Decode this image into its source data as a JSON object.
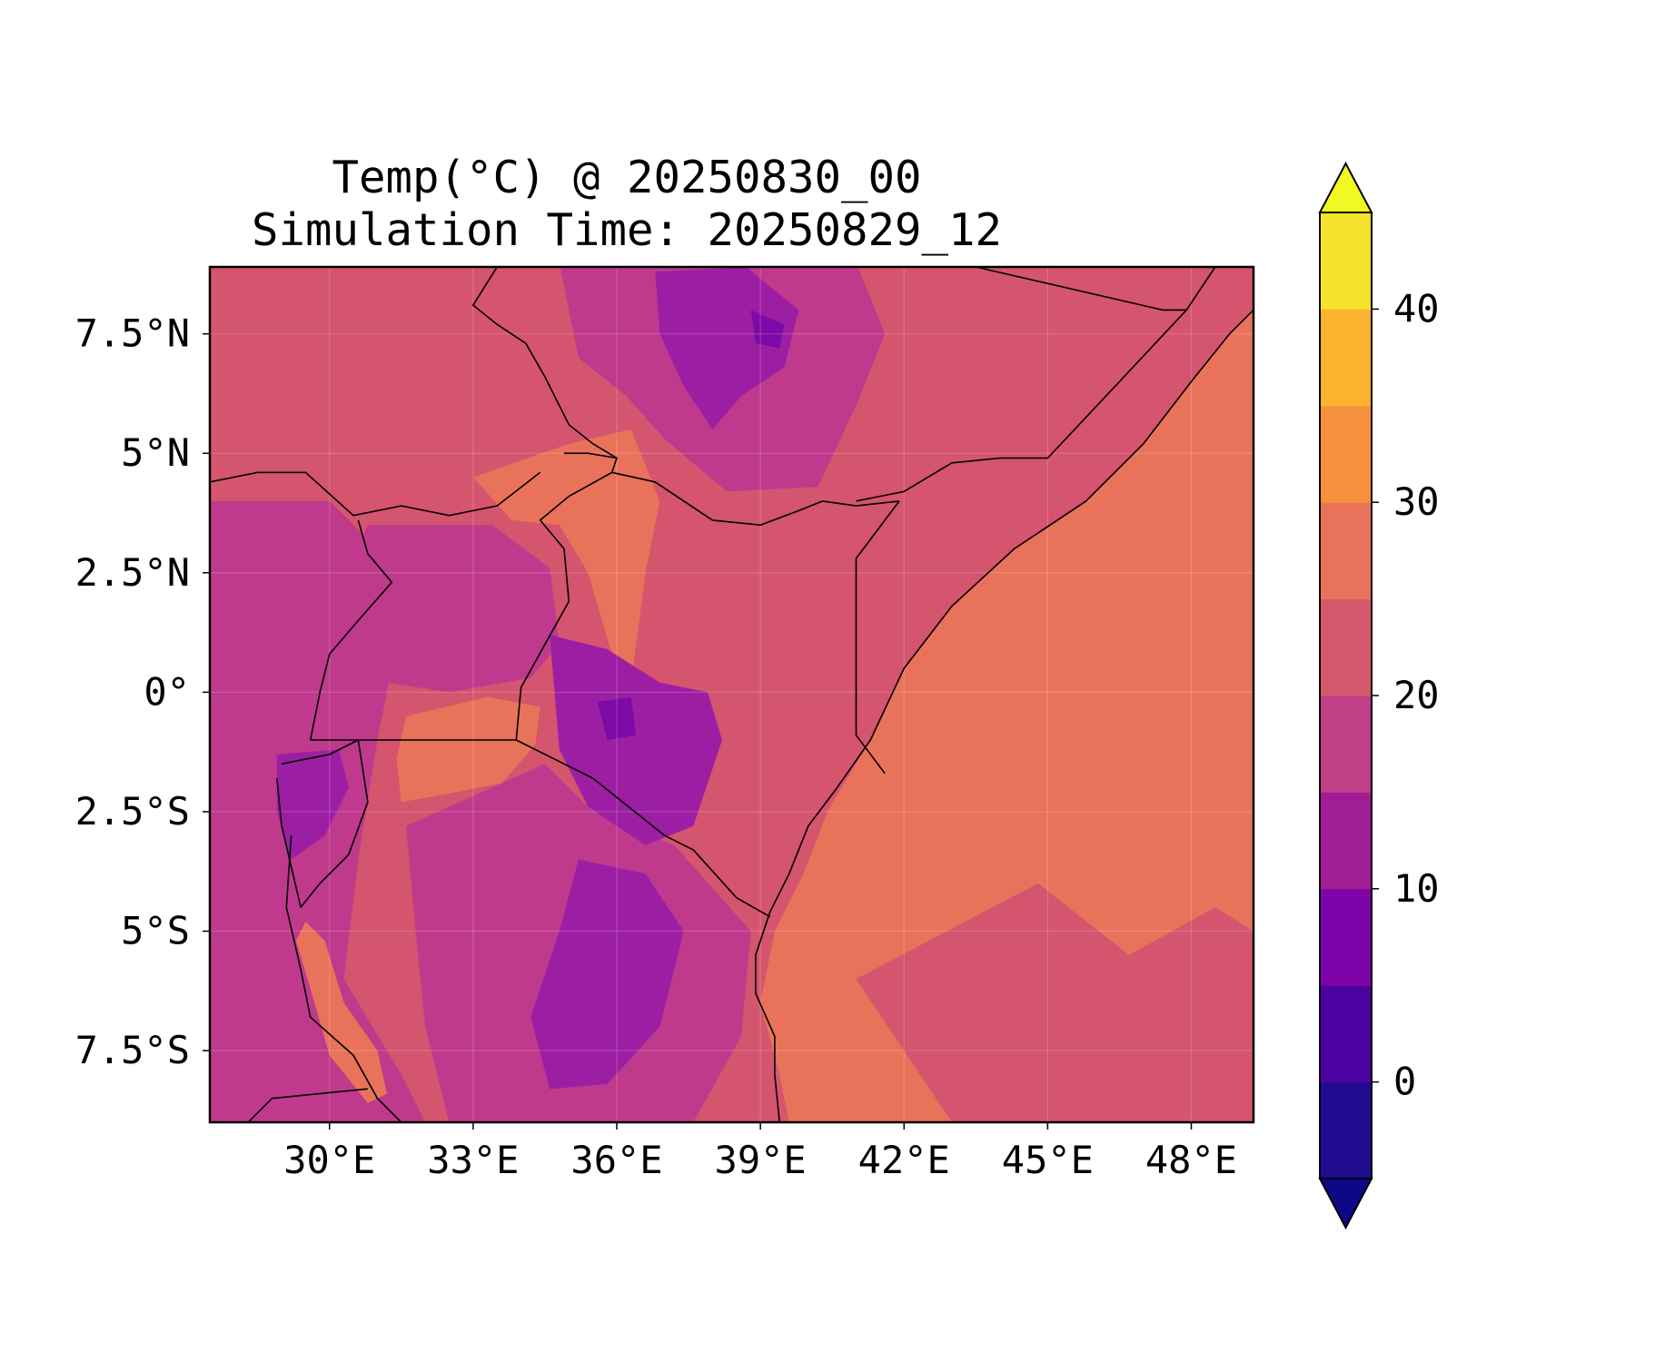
{
  "figure": {
    "title_line1": "Temp(°C) @ 20250830_00",
    "title_line2": "Simulation Time: 20250829_12"
  },
  "map": {
    "extent_lon": [
      27.5,
      49.3
    ],
    "extent_lat": [
      -9.0,
      8.9
    ],
    "x_ticks": [
      {
        "lon": 30,
        "label": "30°E"
      },
      {
        "lon": 33,
        "label": "33°E"
      },
      {
        "lon": 36,
        "label": "36°E"
      },
      {
        "lon": 39,
        "label": "39°E"
      },
      {
        "lon": 42,
        "label": "42°E"
      },
      {
        "lon": 45,
        "label": "45°E"
      },
      {
        "lon": 48,
        "label": "48°E"
      }
    ],
    "y_ticks": [
      {
        "lat": 7.5,
        "label": "7.5°N"
      },
      {
        "lat": 5,
        "label": "5°N"
      },
      {
        "lat": 2.5,
        "label": "2.5°N"
      },
      {
        "lat": 0,
        "label": "0°"
      },
      {
        "lat": -2.5,
        "label": "2.5°S"
      },
      {
        "lat": -5,
        "label": "5°S"
      },
      {
        "lat": -7.5,
        "label": "7.5°S"
      }
    ],
    "gridlines": true,
    "colormap": "plasma",
    "background_color": "#d5546e",
    "fields": [
      {
        "name": "indian-ocean-warm",
        "color": "#e8735a",
        "points": [
          [
            49.3,
            8.0
          ],
          [
            48.8,
            7.5
          ],
          [
            48.0,
            6.5
          ],
          [
            47.0,
            5.2
          ],
          [
            45.8,
            4.0
          ],
          [
            44.3,
            3.0
          ],
          [
            43.0,
            1.8
          ],
          [
            42.0,
            0.5
          ],
          [
            41.3,
            -1.0
          ],
          [
            40.4,
            -2.5
          ],
          [
            39.9,
            -3.8
          ],
          [
            39.3,
            -5.0
          ],
          [
            39.0,
            -6.5
          ],
          [
            39.4,
            -8.0
          ],
          [
            39.6,
            -9.0
          ],
          [
            43.0,
            -9.0
          ],
          [
            41.0,
            -6.0
          ],
          [
            44.8,
            -4.0
          ],
          [
            46.7,
            -5.5
          ],
          [
            48.5,
            -4.5
          ],
          [
            49.3,
            -5.0
          ]
        ]
      },
      {
        "name": "turkana-warm-belt",
        "color": "#e8735a",
        "points": [
          [
            33.0,
            4.5
          ],
          [
            35.0,
            5.2
          ],
          [
            36.3,
            5.5
          ],
          [
            36.9,
            4.0
          ],
          [
            36.6,
            2.5
          ],
          [
            36.3,
            0.2
          ],
          [
            35.9,
            0.8
          ],
          [
            35.4,
            2.5
          ],
          [
            34.8,
            3.5
          ],
          [
            33.8,
            3.6
          ]
        ]
      },
      {
        "name": "lake-victoria-warm",
        "color": "#e8735a",
        "points": [
          [
            31.6,
            -0.5
          ],
          [
            33.3,
            -0.1
          ],
          [
            34.4,
            -0.3
          ],
          [
            34.3,
            -1.1
          ],
          [
            33.6,
            -1.9
          ],
          [
            32.6,
            -2.1
          ],
          [
            31.5,
            -2.3
          ],
          [
            31.4,
            -1.4
          ]
        ]
      },
      {
        "name": "ethiopian-highlands-cool",
        "color": "#bf3a8c",
        "points": [
          [
            34.8,
            9.0
          ],
          [
            41.0,
            9.0
          ],
          [
            41.6,
            7.5
          ],
          [
            41.0,
            6.0
          ],
          [
            40.2,
            4.3
          ],
          [
            38.3,
            4.2
          ],
          [
            37.0,
            5.3
          ],
          [
            36.2,
            6.2
          ],
          [
            35.2,
            7.0
          ]
        ]
      },
      {
        "name": "ethiopian-peaks-cold",
        "color": "#9c1fa3",
        "points": [
          [
            36.8,
            8.8
          ],
          [
            38.7,
            8.9
          ],
          [
            39.8,
            8.0
          ],
          [
            39.5,
            6.8
          ],
          [
            38.6,
            6.2
          ],
          [
            38.0,
            5.5
          ],
          [
            37.4,
            6.4
          ],
          [
            36.9,
            7.5
          ]
        ]
      },
      {
        "name": "ethiopian-summits",
        "color": "#7d0aa6",
        "points": [
          [
            38.8,
            8.0
          ],
          [
            39.5,
            7.7
          ],
          [
            39.4,
            7.2
          ],
          [
            38.9,
            7.3
          ]
        ]
      },
      {
        "name": "western-rift-cool",
        "color": "#bf3a8c",
        "points": [
          [
            27.5,
            4.0
          ],
          [
            30.0,
            4.0
          ],
          [
            31.0,
            3.0
          ],
          [
            31.4,
            1.0
          ],
          [
            31.0,
            -1.0
          ],
          [
            30.6,
            -3.5
          ],
          [
            30.3,
            -6.0
          ],
          [
            31.5,
            -8.0
          ],
          [
            32.0,
            -9.0
          ],
          [
            27.5,
            -9.0
          ]
        ]
      },
      {
        "name": "uganda-cool",
        "color": "#bf3a8c",
        "points": [
          [
            30.8,
            3.5
          ],
          [
            33.4,
            3.5
          ],
          [
            34.6,
            2.6
          ],
          [
            34.8,
            1.0
          ],
          [
            34.2,
            0.3
          ],
          [
            32.5,
            0.0
          ],
          [
            31.2,
            0.2
          ],
          [
            30.5,
            1.2
          ],
          [
            30.3,
            2.3
          ]
        ]
      },
      {
        "name": "tanzania-interior-cool",
        "color": "#bf3a8c",
        "points": [
          [
            31.6,
            -2.8
          ],
          [
            34.5,
            -1.5
          ],
          [
            35.5,
            -2.5
          ],
          [
            37.2,
            -3.2
          ],
          [
            38.8,
            -5.0
          ],
          [
            38.6,
            -7.2
          ],
          [
            37.6,
            -9.0
          ],
          [
            32.5,
            -9.0
          ],
          [
            32.0,
            -7.0
          ],
          [
            31.8,
            -5.0
          ]
        ]
      },
      {
        "name": "kenya-highlands-cool",
        "color": "#9c1fa3",
        "points": [
          [
            34.6,
            1.2
          ],
          [
            35.8,
            0.9
          ],
          [
            36.9,
            0.2
          ],
          [
            37.9,
            0.0
          ],
          [
            38.2,
            -1.0
          ],
          [
            37.6,
            -2.8
          ],
          [
            36.6,
            -3.2
          ],
          [
            35.4,
            -2.4
          ],
          [
            34.8,
            -1.2
          ]
        ]
      },
      {
        "name": "tanzania-highlands-cool",
        "color": "#9c1fa3",
        "points": [
          [
            35.2,
            -3.5
          ],
          [
            36.6,
            -3.8
          ],
          [
            37.4,
            -5.0
          ],
          [
            36.9,
            -7.0
          ],
          [
            35.8,
            -8.2
          ],
          [
            34.6,
            -8.3
          ],
          [
            34.2,
            -6.8
          ],
          [
            34.8,
            -5.0
          ]
        ]
      },
      {
        "name": "rwanda-cool",
        "color": "#9c1fa3",
        "points": [
          [
            28.9,
            -1.3
          ],
          [
            30.2,
            -1.2
          ],
          [
            30.4,
            -2.0
          ],
          [
            29.9,
            -3.0
          ],
          [
            29.2,
            -3.5
          ],
          [
            28.9,
            -2.5
          ]
        ]
      },
      {
        "name": "kenya-peaks",
        "color": "#7d0aa6",
        "points": [
          [
            35.6,
            -0.2
          ],
          [
            36.3,
            -0.1
          ],
          [
            36.4,
            -0.9
          ],
          [
            35.8,
            -1.0
          ]
        ]
      },
      {
        "name": "tanganyika-warm",
        "color": "#e8735a",
        "points": [
          [
            29.5,
            -4.8
          ],
          [
            29.9,
            -5.2
          ],
          [
            30.3,
            -6.5
          ],
          [
            31.0,
            -7.5
          ],
          [
            31.2,
            -8.4
          ],
          [
            30.8,
            -8.6
          ],
          [
            30.0,
            -7.6
          ],
          [
            29.6,
            -6.2
          ],
          [
            29.3,
            -5.2
          ]
        ]
      }
    ],
    "boundaries": [
      {
        "name": "coastline",
        "points": [
          [
            49.3,
            8.0
          ],
          [
            48.8,
            7.5
          ],
          [
            48.0,
            6.5
          ],
          [
            47.0,
            5.2
          ],
          [
            45.8,
            4.0
          ],
          [
            44.3,
            3.0
          ],
          [
            43.0,
            1.8
          ],
          [
            42.0,
            0.5
          ],
          [
            41.3,
            -1.0
          ],
          [
            40.6,
            -2.0
          ],
          [
            40.0,
            -2.8
          ],
          [
            39.6,
            -3.8
          ],
          [
            39.2,
            -4.6
          ],
          [
            38.9,
            -5.5
          ],
          [
            38.9,
            -6.3
          ],
          [
            39.3,
            -7.2
          ],
          [
            39.3,
            -8.0
          ],
          [
            39.4,
            -9.0
          ]
        ]
      },
      {
        "name": "somalia-ethiopia-border",
        "points": [
          [
            41.0,
            4.0
          ],
          [
            42.0,
            4.2
          ],
          [
            43.0,
            4.8
          ],
          [
            44.0,
            4.9
          ],
          [
            45.0,
            4.9
          ],
          [
            46.5,
            6.5
          ],
          [
            47.9,
            8.0
          ],
          [
            48.5,
            8.9
          ]
        ]
      },
      {
        "name": "ethiopia-somaliland-border",
        "points": [
          [
            43.5,
            8.9
          ],
          [
            47.4,
            8.0
          ],
          [
            47.9,
            8.0
          ]
        ]
      },
      {
        "name": "kenya-ethiopia-border",
        "points": [
          [
            35.9,
            4.6
          ],
          [
            36.8,
            4.4
          ],
          [
            38.0,
            3.6
          ],
          [
            39.0,
            3.5
          ],
          [
            39.8,
            3.8
          ],
          [
            40.3,
            4.0
          ],
          [
            41.0,
            3.9
          ],
          [
            41.9,
            4.0
          ]
        ]
      },
      {
        "name": "kenya-somalia-border",
        "points": [
          [
            41.9,
            4.0
          ],
          [
            41.0,
            2.8
          ],
          [
            41.0,
            -0.9
          ],
          [
            41.6,
            -1.7
          ]
        ]
      },
      {
        "name": "kenya-tanzania-border",
        "points": [
          [
            33.9,
            -1.0
          ],
          [
            35.5,
            -1.8
          ],
          [
            37.0,
            -3.0
          ],
          [
            37.6,
            -3.3
          ],
          [
            38.5,
            -4.3
          ],
          [
            39.2,
            -4.7
          ]
        ]
      },
      {
        "name": "kenya-uganda-border",
        "points": [
          [
            33.9,
            -1.0
          ],
          [
            34.0,
            0.1
          ],
          [
            34.5,
            1.0
          ],
          [
            35.0,
            1.9
          ],
          [
            34.9,
            3.0
          ],
          [
            34.4,
            3.6
          ],
          [
            35.0,
            4.1
          ],
          [
            35.9,
            4.6
          ],
          [
            36.0,
            4.9
          ],
          [
            35.4,
            5.0
          ],
          [
            34.9,
            5.0
          ]
        ]
      },
      {
        "name": "south-sudan-border",
        "points": [
          [
            27.5,
            4.4
          ],
          [
            28.5,
            4.6
          ],
          [
            29.5,
            4.6
          ],
          [
            30.5,
            3.7
          ],
          [
            31.5,
            3.9
          ],
          [
            32.5,
            3.7
          ],
          [
            33.5,
            3.9
          ],
          [
            34.4,
            4.6
          ]
        ]
      },
      {
        "name": "south-sudan-ethiopia-border",
        "points": [
          [
            33.5,
            8.9
          ],
          [
            33.0,
            8.1
          ],
          [
            33.5,
            7.7
          ],
          [
            34.1,
            7.3
          ],
          [
            34.5,
            6.6
          ],
          [
            35.0,
            5.6
          ],
          [
            35.5,
            5.2
          ],
          [
            36.0,
            4.9
          ]
        ]
      },
      {
        "name": "uganda-drc-border",
        "points": [
          [
            30.6,
            3.6
          ],
          [
            30.8,
            2.9
          ],
          [
            31.3,
            2.3
          ],
          [
            30.6,
            1.5
          ],
          [
            30.0,
            0.8
          ],
          [
            29.8,
            0.0
          ],
          [
            29.6,
            -1.0
          ]
        ]
      },
      {
        "name": "uganda-tanzania-border",
        "points": [
          [
            29.6,
            -1.0
          ],
          [
            31.0,
            -1.0
          ],
          [
            33.9,
            -1.0
          ]
        ]
      },
      {
        "name": "rwanda-burundi-border",
        "points": [
          [
            29.0,
            -1.5
          ],
          [
            30.0,
            -1.3
          ],
          [
            30.6,
            -1.0
          ],
          [
            30.8,
            -2.3
          ],
          [
            30.4,
            -3.4
          ],
          [
            29.8,
            -4.0
          ],
          [
            29.4,
            -4.5
          ],
          [
            29.0,
            -2.8
          ],
          [
            28.9,
            -1.8
          ]
        ]
      },
      {
        "name": "tanganyika-west-shore",
        "points": [
          [
            29.2,
            -3.0
          ],
          [
            29.1,
            -4.5
          ],
          [
            29.4,
            -5.8
          ],
          [
            29.6,
            -6.8
          ],
          [
            30.5,
            -7.6
          ],
          [
            31.0,
            -8.5
          ],
          [
            31.5,
            -9.0
          ]
        ]
      },
      {
        "name": "zambia-border",
        "points": [
          [
            28.3,
            -9.0
          ],
          [
            28.8,
            -8.5
          ],
          [
            30.8,
            -8.3
          ]
        ]
      }
    ]
  },
  "colorbar": {
    "levels": [
      -5,
      0,
      5,
      10,
      15,
      20,
      25,
      30,
      35,
      40,
      45
    ],
    "colors": [
      "#1f0c8f",
      "#4c02a1",
      "#7e03a8",
      "#a11d96",
      "#c13f87",
      "#d6586d",
      "#e8735a",
      "#f5913d",
      "#fdb32f",
      "#f5e22a"
    ],
    "under_color": "#0d0887",
    "over_color": "#f0f921",
    "ticks": [
      {
        "value": 0,
        "label": "0"
      },
      {
        "value": 10,
        "label": "10"
      },
      {
        "value": 20,
        "label": "20"
      },
      {
        "value": 30,
        "label": "30"
      },
      {
        "value": 40,
        "label": "40"
      }
    ]
  }
}
